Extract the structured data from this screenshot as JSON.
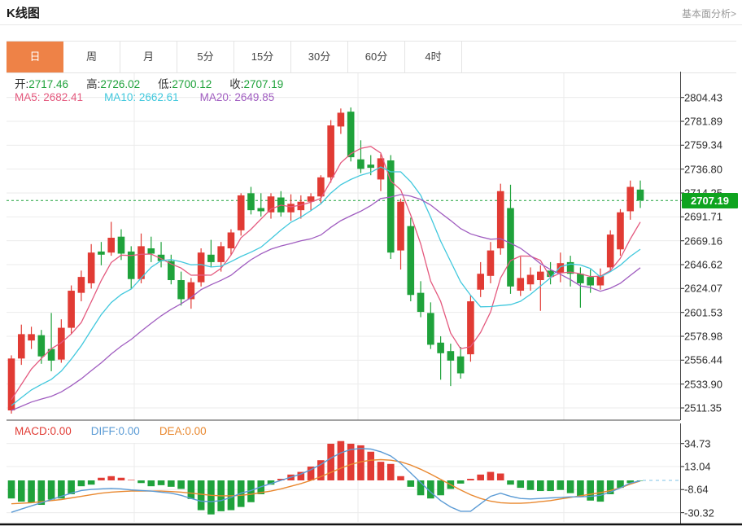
{
  "header": {
    "title": "K线图",
    "link": "基本面分析>"
  },
  "tabs": {
    "items": [
      {
        "label": "日",
        "active": true
      },
      {
        "label": "周",
        "active": false
      },
      {
        "label": "月",
        "active": false
      },
      {
        "label": "5分",
        "active": false
      },
      {
        "label": "15分",
        "active": false
      },
      {
        "label": "30分",
        "active": false
      },
      {
        "label": "60分",
        "active": false
      },
      {
        "label": "4时",
        "active": false
      }
    ]
  },
  "ohlc": {
    "items": [
      {
        "label": "开:",
        "value": "2717.46"
      },
      {
        "label": "高:",
        "value": "2726.02"
      },
      {
        "label": "低:",
        "value": "2700.12"
      },
      {
        "label": "收:",
        "value": "2707.19"
      }
    ]
  },
  "ma_row": {
    "items": [
      {
        "text": "MA5: 2682.41",
        "color": "#e4597e"
      },
      {
        "text": "MA10: 2662.61",
        "color": "#41c8dd"
      },
      {
        "text": "MA20: 2649.85",
        "color": "#a05dc0"
      }
    ]
  },
  "macd_row": {
    "items": [
      {
        "text": "MACD:0.00",
        "color": "#e13b34"
      },
      {
        "text": "DIFF:0.00",
        "color": "#5b9bd5"
      },
      {
        "text": "DEA:0.00",
        "color": "#e9882f"
      }
    ]
  },
  "price_tag": {
    "value": "2707.19"
  },
  "colors": {
    "up": "#e13b34",
    "down": "#1fa23b",
    "tag_bg": "#0fa41f",
    "ma5": "#e4597e",
    "ma10": "#41c8dd",
    "ma20": "#a05dc0",
    "diff": "#5b9bd5",
    "dea": "#e9882f",
    "dash_ext": "#a9d7ef",
    "current_line": "#1fa23b",
    "grid": "#ebebeb",
    "axis": "#444444",
    "tab_active": "#ee8247"
  },
  "chart_data": {
    "main": {
      "type": "candlestick",
      "title": "K线图 (日)",
      "up_color_meaning": "red = rising candle, green = falling candle",
      "y_ticks": [
        2804.43,
        2781.89,
        2759.34,
        2736.8,
        2714.25,
        2691.71,
        2669.16,
        2646.62,
        2624.07,
        2601.53,
        2578.98,
        2556.44,
        2533.9,
        2511.35
      ],
      "current_price": 2707.19,
      "last_candle": {
        "open": 2717.46,
        "high": 2726.02,
        "low": 2700.12,
        "close": 2707.19
      },
      "ma_values_shown": {
        "MA5": 2682.41,
        "MA10": 2662.61,
        "MA20": 2649.85
      },
      "candles_ohlc": [
        [
          2509,
          2561,
          2506,
          2558
        ],
        [
          2558,
          2590,
          2552,
          2581
        ],
        [
          2575,
          2588,
          2567,
          2581
        ],
        [
          2580,
          2585,
          2553,
          2560
        ],
        [
          2567,
          2601,
          2546,
          2556
        ],
        [
          2557,
          2595,
          2554,
          2587
        ],
        [
          2587,
          2627,
          2581,
          2622
        ],
        [
          2620,
          2641,
          2612,
          2635
        ],
        [
          2629,
          2666,
          2624,
          2658
        ],
        [
          2659,
          2668,
          2646,
          2656
        ],
        [
          2658,
          2687,
          2655,
          2672
        ],
        [
          2673,
          2680,
          2651,
          2657
        ],
        [
          2659,
          2664,
          2624,
          2633
        ],
        [
          2633,
          2676,
          2629,
          2664
        ],
        [
          2662,
          2673,
          2649,
          2657
        ],
        [
          2656,
          2668,
          2644,
          2650
        ],
        [
          2650,
          2656,
          2628,
          2632
        ],
        [
          2632,
          2640,
          2608,
          2614
        ],
        [
          2614,
          2634,
          2605,
          2630
        ],
        [
          2630,
          2662,
          2626,
          2658
        ],
        [
          2656,
          2670,
          2644,
          2649
        ],
        [
          2649,
          2668,
          2640,
          2664
        ],
        [
          2662,
          2680,
          2656,
          2677
        ],
        [
          2679,
          2714,
          2674,
          2712
        ],
        [
          2714,
          2720,
          2694,
          2698
        ],
        [
          2700,
          2714,
          2692,
          2697
        ],
        [
          2696,
          2714,
          2690,
          2711
        ],
        [
          2710,
          2716,
          2692,
          2696
        ],
        [
          2696,
          2713,
          2688,
          2704
        ],
        [
          2698,
          2712,
          2690,
          2706
        ],
        [
          2706,
          2714,
          2698,
          2711
        ],
        [
          2711,
          2731,
          2704,
          2729
        ],
        [
          2729,
          2783,
          2724,
          2778
        ],
        [
          2777,
          2794,
          2770,
          2790
        ],
        [
          2791,
          2795,
          2744,
          2748
        ],
        [
          2746,
          2764,
          2733,
          2737
        ],
        [
          2741,
          2750,
          2731,
          2738
        ],
        [
          2727,
          2751,
          2716,
          2747
        ],
        [
          2745,
          2750,
          2652,
          2658
        ],
        [
          2660,
          2709,
          2642,
          2706
        ],
        [
          2683,
          2691,
          2612,
          2618
        ],
        [
          2620,
          2631,
          2597,
          2602
        ],
        [
          2601,
          2611,
          2567,
          2571
        ],
        [
          2573,
          2579,
          2538,
          2563
        ],
        [
          2565,
          2572,
          2532,
          2556
        ],
        [
          2560,
          2569,
          2539,
          2544
        ],
        [
          2562,
          2618,
          2555,
          2612
        ],
        [
          2623,
          2649,
          2616,
          2638
        ],
        [
          2636,
          2668,
          2629,
          2660
        ],
        [
          2662,
          2723,
          2656,
          2716
        ],
        [
          2700,
          2722,
          2619,
          2626
        ],
        [
          2622,
          2654,
          2617,
          2634
        ],
        [
          2628,
          2644,
          2622,
          2637
        ],
        [
          2632,
          2646,
          2603,
          2640
        ],
        [
          2641,
          2649,
          2628,
          2635
        ],
        [
          2639,
          2658,
          2630,
          2648
        ],
        [
          2649,
          2655,
          2626,
          2638
        ],
        [
          2638,
          2644,
          2606,
          2629
        ],
        [
          2635,
          2642,
          2620,
          2627
        ],
        [
          2627,
          2643,
          2623,
          2636
        ],
        [
          2644,
          2679,
          2640,
          2675
        ],
        [
          2661,
          2699,
          2655,
          2696
        ],
        [
          2697,
          2726,
          2689,
          2720
        ],
        [
          2717.46,
          2726.02,
          2700.12,
          2707.19
        ]
      ]
    },
    "macd": {
      "type": "bar",
      "values_shown": {
        "MACD": 0.0,
        "DIFF": 0.0,
        "DEA": 0.0
      },
      "y_ticks": [
        34.73,
        13.04,
        -8.64,
        -30.32
      ],
      "hist": [
        -17,
        -20,
        -21,
        -23,
        -18,
        -17,
        -13,
        -5.5,
        -4,
        2.5,
        4,
        2.5,
        0.5,
        -2.5,
        -5.5,
        -4.5,
        -6,
        -8,
        -17.5,
        -28,
        -32,
        -29,
        -28,
        -25,
        -20.5,
        -13,
        -4,
        1.5,
        5.5,
        8,
        13,
        19,
        34.5,
        37,
        34.5,
        33,
        27,
        17.5,
        15.5,
        4,
        -6,
        -14,
        -17,
        -14,
        -8,
        -3,
        1.5,
        5.5,
        8,
        6.5,
        -4,
        -7,
        -9,
        -10,
        -10,
        -9,
        -12,
        -15,
        -19,
        -20,
        -13,
        -7,
        -2.5,
        -0.3
      ],
      "diff": [
        -30,
        -27,
        -24,
        -21,
        -18,
        -15,
        -12,
        -9.5,
        -8.5,
        -8,
        -7.5,
        -8,
        -9,
        -9.5,
        -10,
        -11,
        -12,
        -14,
        -17,
        -19.5,
        -20,
        -19,
        -16,
        -12,
        -9.5,
        -6,
        -3,
        0,
        3,
        6,
        10,
        15,
        21,
        26,
        29,
        30,
        29.5,
        27,
        23,
        16,
        7,
        -2,
        -11,
        -19,
        -25,
        -29,
        -29,
        -22,
        -15,
        -12,
        -15,
        -17,
        -17.5,
        -17,
        -16.5,
        -16,
        -15.5,
        -15.5,
        -15,
        -14,
        -11,
        -7,
        -2.5,
        -0.3
      ],
      "dea": [
        -22,
        -21.5,
        -21,
        -20,
        -19,
        -18,
        -16.5,
        -15,
        -13.5,
        -12,
        -11,
        -10.5,
        -10,
        -10,
        -10,
        -10,
        -10.5,
        -11,
        -12,
        -13,
        -14,
        -14.5,
        -14.5,
        -14,
        -13,
        -11.5,
        -10,
        -8,
        -5.5,
        -3,
        0,
        3.5,
        7.5,
        11.5,
        15,
        17.5,
        19,
        19.5,
        19,
        17.5,
        14.5,
        10.5,
        6,
        1,
        -4,
        -9,
        -13.5,
        -17,
        -19.5,
        -21,
        -21.5,
        -21.5,
        -21,
        -20,
        -19,
        -17.5,
        -16,
        -14.5,
        -13,
        -11.5,
        -9.5,
        -7,
        -3.5,
        -0.5
      ]
    }
  }
}
